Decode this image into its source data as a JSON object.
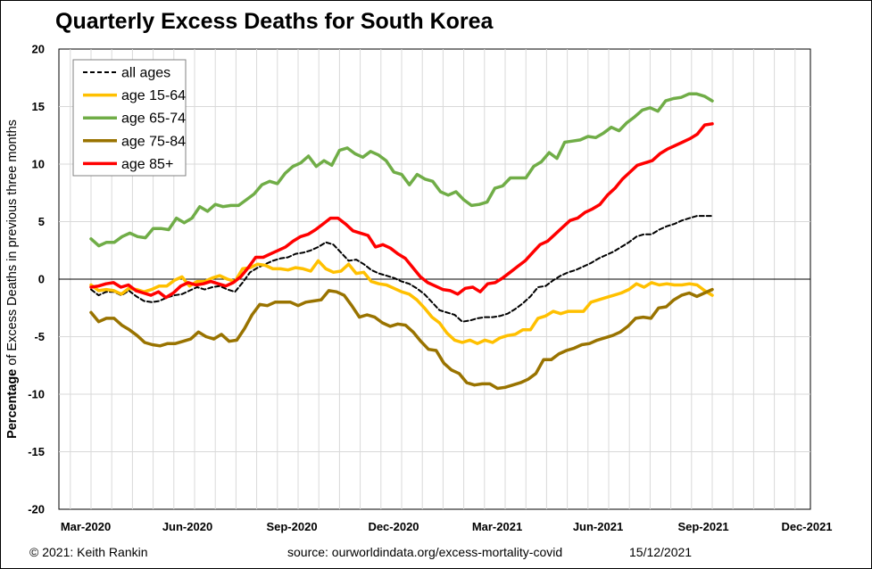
{
  "chart_data": {
    "type": "line",
    "title": "Quarterly Excess Deaths for South Korea",
    "ylabel_bold": "Percentage",
    "ylabel_rest": " of Excess Deaths in previous three months",
    "ylim": [
      -20,
      20
    ],
    "yticks": [
      "20",
      "15",
      "10",
      "5",
      "0",
      "-5",
      "-10",
      "-15",
      "-20"
    ],
    "xticks": [
      "Mar-2020",
      "Jun-2020",
      "Sep-2020",
      "Dec-2020",
      "Mar-2021",
      "Jun-2021",
      "Sep-2021",
      "Dec-2021"
    ],
    "grid": true,
    "legend_position": "top-left",
    "series": [
      {
        "name": "all ages",
        "color": "#000000",
        "dashed": true,
        "values": [
          -0.9,
          -1.4,
          -1.1,
          -1.1,
          -1.4,
          -1.0,
          -1.5,
          -1.9,
          -2.0,
          -1.9,
          -1.6,
          -1.4,
          -1.3,
          -1.0,
          -0.7,
          -0.9,
          -0.7,
          -0.6,
          -0.9,
          -1.1,
          -0.3,
          0.6,
          1.0,
          1.3,
          1.6,
          1.8,
          1.9,
          2.2,
          2.3,
          2.5,
          2.8,
          3.2,
          3.0,
          2.3,
          1.6,
          1.7,
          1.3,
          0.8,
          0.5,
          0.3,
          0.1,
          -0.2,
          -0.4,
          -0.8,
          -1.3,
          -2.0,
          -2.7,
          -2.9,
          -3.1,
          -3.7,
          -3.6,
          -3.4,
          -3.3,
          -3.3,
          -3.2,
          -3.0,
          -2.6,
          -2.1,
          -1.5,
          -0.7,
          -0.6,
          -0.1,
          0.3,
          0.6,
          0.8,
          1.1,
          1.4,
          1.8,
          2.1,
          2.4,
          2.8,
          3.2,
          3.7,
          3.9,
          3.9,
          4.3,
          4.6,
          4.8,
          5.1,
          5.3,
          5.5,
          5.5,
          5.5
        ]
      },
      {
        "name": "age 15-64",
        "color": "#FFC000",
        "dashed": false,
        "values": [
          -0.5,
          -1.0,
          -0.9,
          -1.0,
          -1.3,
          -0.8,
          -0.9,
          -1.1,
          -0.9,
          -0.6,
          -0.6,
          -0.1,
          0.2,
          -0.6,
          -0.2,
          -0.2,
          0.1,
          0.3,
          0.0,
          -0.2,
          0.9,
          1.0,
          1.3,
          1.2,
          0.9,
          0.9,
          0.8,
          1.0,
          0.9,
          0.7,
          1.6,
          0.9,
          0.6,
          0.7,
          1.3,
          0.5,
          0.6,
          -0.2,
          -0.4,
          -0.5,
          -0.8,
          -1.1,
          -1.3,
          -1.8,
          -2.5,
          -3.3,
          -3.8,
          -4.7,
          -5.3,
          -5.5,
          -5.3,
          -5.6,
          -5.3,
          -5.5,
          -5.1,
          -4.9,
          -4.8,
          -4.4,
          -4.4,
          -3.4,
          -3.2,
          -2.8,
          -3.0,
          -2.8,
          -2.8,
          -2.8,
          -2.0,
          -1.8,
          -1.6,
          -1.4,
          -1.2,
          -0.9,
          -0.4,
          -0.7,
          -0.3,
          -0.5,
          -0.4,
          -0.5,
          -0.5,
          -0.4,
          -0.5,
          -1.0,
          -1.4
        ]
      },
      {
        "name": "age 65-74",
        "color": "#70AD47",
        "dashed": false,
        "values": [
          3.5,
          2.9,
          3.2,
          3.2,
          3.7,
          4.0,
          3.7,
          3.6,
          4.4,
          4.4,
          4.3,
          5.3,
          4.9,
          5.3,
          6.3,
          5.9,
          6.5,
          6.3,
          6.4,
          6.4,
          6.9,
          7.4,
          8.2,
          8.5,
          8.3,
          9.2,
          9.8,
          10.1,
          10.7,
          9.8,
          10.3,
          9.9,
          11.2,
          11.4,
          10.9,
          10.6,
          11.1,
          10.8,
          10.3,
          9.3,
          9.1,
          8.2,
          9.1,
          8.7,
          8.5,
          7.6,
          7.3,
          7.6,
          6.9,
          6.4,
          6.5,
          6.7,
          7.9,
          8.1,
          8.8,
          8.8,
          8.8,
          9.8,
          10.2,
          11.0,
          10.5,
          11.9,
          12.0,
          12.1,
          12.4,
          12.3,
          12.7,
          13.2,
          12.9,
          13.6,
          14.1,
          14.7,
          14.9,
          14.6,
          15.5,
          15.7,
          15.8,
          16.1,
          16.1,
          15.9,
          15.5
        ]
      },
      {
        "name": "age 75-84",
        "color": "#997300",
        "dashed": false,
        "values": [
          -2.9,
          -3.7,
          -3.4,
          -3.4,
          -4.0,
          -4.4,
          -4.9,
          -5.5,
          -5.7,
          -5.8,
          -5.6,
          -5.6,
          -5.4,
          -5.2,
          -4.6,
          -5.0,
          -5.2,
          -4.8,
          -5.4,
          -5.3,
          -4.3,
          -3.1,
          -2.2,
          -2.3,
          -2.0,
          -2.0,
          -2.0,
          -2.3,
          -2.0,
          -1.9,
          -1.8,
          -1.0,
          -1.1,
          -1.4,
          -2.3,
          -3.3,
          -3.1,
          -3.3,
          -3.8,
          -4.1,
          -3.9,
          -4.0,
          -4.6,
          -5.4,
          -6.1,
          -6.2,
          -7.3,
          -7.9,
          -8.2,
          -9.0,
          -9.2,
          -9.1,
          -9.1,
          -9.5,
          -9.4,
          -9.2,
          -9.0,
          -8.7,
          -8.2,
          -7.0,
          -7.0,
          -6.5,
          -6.2,
          -6.0,
          -5.7,
          -5.6,
          -5.3,
          -5.1,
          -4.9,
          -4.6,
          -4.1,
          -3.4,
          -3.3,
          -3.4,
          -2.5,
          -2.4,
          -1.8,
          -1.4,
          -1.2,
          -1.5,
          -1.2,
          -0.9
        ]
      },
      {
        "name": "age 85+",
        "color": "#FF0000",
        "dashed": false,
        "values": [
          -0.7,
          -0.6,
          -0.4,
          -0.3,
          -0.7,
          -0.5,
          -1.0,
          -1.2,
          -1.4,
          -1.1,
          -1.6,
          -1.2,
          -0.6,
          -0.3,
          -0.5,
          -0.4,
          -0.2,
          -0.4,
          -0.6,
          -0.3,
          0.2,
          1.0,
          1.9,
          1.9,
          2.2,
          2.5,
          2.8,
          3.3,
          3.7,
          3.9,
          4.3,
          4.8,
          5.3,
          5.3,
          4.8,
          4.2,
          4.0,
          3.8,
          2.8,
          3.0,
          2.7,
          2.2,
          1.8,
          1.0,
          0.2,
          -0.3,
          -0.6,
          -0.9,
          -1.0,
          -1.3,
          -0.8,
          -0.7,
          -1.1,
          -0.4,
          -0.3,
          0.1,
          0.6,
          1.1,
          1.6,
          2.3,
          3.0,
          3.3,
          3.9,
          4.5,
          5.1,
          5.3,
          5.8,
          6.1,
          6.5,
          7.3,
          7.9,
          8.7,
          9.3,
          9.9,
          10.1,
          10.3,
          10.9,
          11.3,
          11.6,
          11.9,
          12.2,
          12.6,
          13.4,
          13.5
        ]
      }
    ]
  },
  "footer": {
    "copyright": "© 2021: Keith Rankin",
    "source": "source:  ourworldindata.org/excess-mortality-covid",
    "date": "15/12/2021"
  }
}
